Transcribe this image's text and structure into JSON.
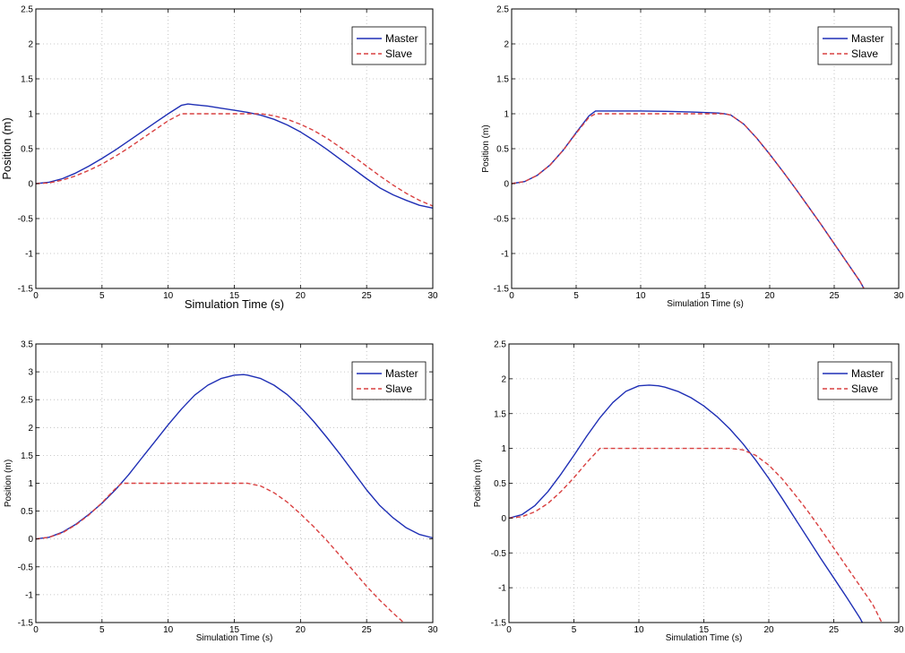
{
  "chart_data": [
    {
      "type": "line",
      "xlabel": "Simulation Time (s)",
      "ylabel": "Position (m)",
      "xlim": [
        0,
        30
      ],
      "ylim": [
        -1.5,
        2.5
      ],
      "xticks": [
        0,
        5,
        10,
        15,
        20,
        25,
        30
      ],
      "yticks": [
        -1.5,
        -1,
        -0.5,
        0,
        0.5,
        1,
        1.5,
        2,
        2.5
      ],
      "grid": true,
      "legend_position": "top-right",
      "series": [
        {
          "name": "Master",
          "color": "#1f2fb5",
          "style": "solid",
          "x": [
            0,
            1,
            2,
            3,
            4,
            5,
            6,
            7,
            8,
            9,
            10,
            11,
            11.5,
            12,
            13,
            14,
            15,
            16,
            17,
            18,
            19,
            20,
            21,
            22,
            23,
            24,
            25,
            26,
            27,
            28,
            29,
            30
          ],
          "y": [
            0,
            0.02,
            0.07,
            0.15,
            0.25,
            0.36,
            0.48,
            0.61,
            0.74,
            0.87,
            1.0,
            1.12,
            1.14,
            1.13,
            1.11,
            1.08,
            1.05,
            1.02,
            0.98,
            0.92,
            0.84,
            0.74,
            0.62,
            0.49,
            0.35,
            0.21,
            0.07,
            -0.06,
            -0.16,
            -0.24,
            -0.31,
            -0.35
          ]
        },
        {
          "name": "Slave",
          "color": "#d94040",
          "style": "dashed",
          "x": [
            0,
            1,
            2,
            3,
            4,
            5,
            6,
            7,
            8,
            9,
            10,
            11,
            12,
            13,
            14,
            15,
            16,
            17,
            18,
            19,
            20,
            21,
            22,
            23,
            24,
            25,
            26,
            27,
            28,
            29,
            30
          ],
          "y": [
            0,
            0.01,
            0.05,
            0.11,
            0.19,
            0.28,
            0.39,
            0.51,
            0.64,
            0.77,
            0.9,
            1.0,
            1.0,
            1.0,
            1.0,
            1.0,
            1.0,
            1.0,
            0.97,
            0.92,
            0.85,
            0.76,
            0.65,
            0.52,
            0.39,
            0.25,
            0.11,
            -0.02,
            -0.14,
            -0.24,
            -0.32
          ]
        }
      ]
    },
    {
      "type": "line",
      "xlabel": "Simulation Time (s)",
      "ylabel": "Position (m)",
      "xlim": [
        0,
        30
      ],
      "ylim": [
        -1.5,
        2.5
      ],
      "xticks": [
        0,
        5,
        10,
        15,
        20,
        25,
        30
      ],
      "yticks": [
        -1.5,
        -1,
        -0.5,
        0,
        0.5,
        1,
        1.5,
        2,
        2.5
      ],
      "grid": true,
      "legend_position": "top-right",
      "series": [
        {
          "name": "Master",
          "color": "#1f2fb5",
          "style": "solid",
          "x": [
            0,
            1,
            2,
            3,
            4,
            5,
            6,
            6.5,
            8,
            10,
            12,
            14,
            16,
            16.5,
            17,
            18,
            19,
            20,
            21,
            22,
            23,
            24,
            25,
            26,
            27,
            27.3
          ],
          "y": [
            0,
            0.03,
            0.12,
            0.27,
            0.48,
            0.73,
            0.97,
            1.04,
            1.04,
            1.04,
            1.035,
            1.025,
            1.01,
            1.0,
            0.98,
            0.85,
            0.65,
            0.42,
            0.18,
            -0.07,
            -0.33,
            -0.59,
            -0.86,
            -1.13,
            -1.4,
            -1.5
          ]
        },
        {
          "name": "Slave",
          "color": "#d94040",
          "style": "dashed",
          "x": [
            0,
            1,
            2,
            3,
            4,
            5,
            6,
            6.5,
            8,
            10,
            12,
            14,
            16,
            16.5,
            17,
            18,
            19,
            20,
            21,
            22,
            23,
            24,
            25,
            26,
            27,
            27.3
          ],
          "y": [
            0,
            0.03,
            0.12,
            0.27,
            0.48,
            0.72,
            0.95,
            1.0,
            1.0,
            1.0,
            1.0,
            1.0,
            1.0,
            1.0,
            0.98,
            0.85,
            0.65,
            0.42,
            0.18,
            -0.07,
            -0.33,
            -0.59,
            -0.86,
            -1.13,
            -1.4,
            -1.5
          ]
        }
      ]
    },
    {
      "type": "line",
      "xlabel": "Simulation Time (s)",
      "ylabel": "Position (m)",
      "xlim": [
        0,
        30
      ],
      "ylim": [
        -1.5,
        3.5
      ],
      "xticks": [
        0,
        5,
        10,
        15,
        20,
        25,
        30
      ],
      "yticks": [
        -1.5,
        -1,
        -0.5,
        0,
        0.5,
        1,
        1.5,
        2,
        2.5,
        3,
        3.5
      ],
      "grid": true,
      "legend_position": "top-right",
      "series": [
        {
          "name": "Master",
          "color": "#1f2fb5",
          "style": "solid",
          "x": [
            0,
            1,
            2,
            3,
            4,
            5,
            6,
            7,
            8,
            9,
            10,
            11,
            12,
            13,
            14,
            15,
            15.7,
            16,
            17,
            18,
            19,
            20,
            21,
            22,
            23,
            24,
            25,
            26,
            27,
            28,
            29,
            30
          ],
          "y": [
            0,
            0.03,
            0.12,
            0.26,
            0.44,
            0.64,
            0.88,
            1.15,
            1.45,
            1.75,
            2.05,
            2.33,
            2.58,
            2.76,
            2.88,
            2.94,
            2.95,
            2.94,
            2.88,
            2.76,
            2.59,
            2.37,
            2.11,
            1.82,
            1.52,
            1.2,
            0.88,
            0.6,
            0.38,
            0.2,
            0.08,
            0.02
          ]
        },
        {
          "name": "Slave",
          "color": "#d94040",
          "style": "dashed",
          "x": [
            0,
            1,
            2,
            3,
            4,
            5,
            6,
            6.5,
            8,
            10,
            12,
            14,
            16,
            17,
            18,
            19,
            20,
            21,
            22,
            23,
            24,
            25,
            26,
            27,
            27.8
          ],
          "y": [
            0,
            0.03,
            0.11,
            0.25,
            0.43,
            0.65,
            0.9,
            1.0,
            1.0,
            1.0,
            1.0,
            1.0,
            1.0,
            0.95,
            0.83,
            0.66,
            0.45,
            0.22,
            -0.03,
            -0.3,
            -0.57,
            -0.85,
            -1.1,
            -1.33,
            -1.5
          ]
        }
      ]
    },
    {
      "type": "line",
      "xlabel": "Simulation Time (s)",
      "ylabel": "Position (m)",
      "xlim": [
        0,
        30
      ],
      "ylim": [
        -1.5,
        2.5
      ],
      "xticks": [
        0,
        5,
        10,
        15,
        20,
        25,
        30
      ],
      "yticks": [
        -1.5,
        -1,
        -0.5,
        0,
        0.5,
        1,
        1.5,
        2,
        2.5
      ],
      "grid": true,
      "legend_position": "top-right",
      "series": [
        {
          "name": "Master",
          "color": "#1f2fb5",
          "style": "solid",
          "x": [
            0,
            1,
            2,
            3,
            4,
            5,
            6,
            7,
            8,
            9,
            10,
            10.8,
            11.5,
            12,
            13,
            14,
            15,
            16,
            17,
            18,
            19,
            20,
            21,
            22,
            23,
            24,
            25,
            26,
            27,
            27.2
          ],
          "y": [
            0,
            0.05,
            0.18,
            0.38,
            0.63,
            0.9,
            1.18,
            1.44,
            1.66,
            1.82,
            1.9,
            1.91,
            1.9,
            1.88,
            1.82,
            1.73,
            1.61,
            1.46,
            1.28,
            1.07,
            0.83,
            0.57,
            0.29,
            0.0,
            -0.29,
            -0.58,
            -0.86,
            -1.14,
            -1.43,
            -1.5
          ]
        },
        {
          "name": "Slave",
          "color": "#d94040",
          "style": "dashed",
          "x": [
            0,
            1,
            2,
            3,
            4,
            5,
            6,
            7,
            9,
            11,
            13,
            15,
            17,
            18,
            19,
            20,
            21,
            22,
            23,
            24,
            25,
            26,
            27,
            28,
            28.7
          ],
          "y": [
            0,
            0.02,
            0.09,
            0.21,
            0.38,
            0.58,
            0.8,
            1.0,
            1.0,
            1.0,
            1.0,
            1.0,
            1.0,
            0.98,
            0.9,
            0.76,
            0.57,
            0.34,
            0.1,
            -0.16,
            -0.43,
            -0.7,
            -0.97,
            -1.24,
            -1.5
          ]
        }
      ]
    }
  ]
}
